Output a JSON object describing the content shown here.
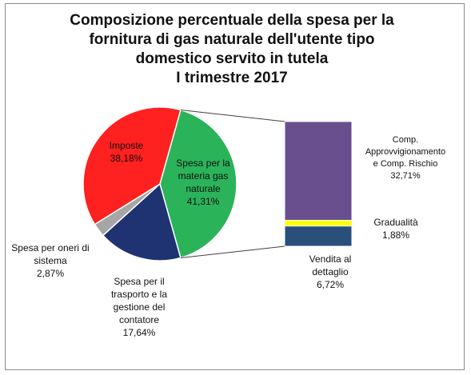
{
  "chart_data": {
    "type": "bar-of-pie",
    "title": [
      "Composizione percentuale della spesa per la",
      "fornitura di gas naturale dell'utente tipo",
      "domestico servito in tutela",
      "I trimestre 2017"
    ],
    "pie": {
      "slices": [
        {
          "name": "Spesa per la materia gas naturale",
          "label": [
            "Spesa per la",
            "materia gas",
            "naturale"
          ],
          "value": 41.31,
          "value_text": "41,31%",
          "color": "#2bb35a"
        },
        {
          "name": "Spesa per il trasporto e la gestione del contatore",
          "label": [
            "Spesa per il",
            "trasporto e la",
            "gestione del",
            "contatore"
          ],
          "value": 17.64,
          "value_text": "17,64%",
          "color": "#1f3272"
        },
        {
          "name": "Spesa per oneri di sistema",
          "label": [
            "Spesa per oneri di",
            "sistema"
          ],
          "value": 2.87,
          "value_text": "2,87%",
          "color": "#a6a6a6"
        },
        {
          "name": "Imposte",
          "label": [
            "Imposte"
          ],
          "value": 38.18,
          "value_text": "38,18%",
          "color": "#ff2020"
        }
      ]
    },
    "bar": {
      "breakdown_of": "Spesa per la materia gas naturale",
      "segments": [
        {
          "name": "Vendita al dettaglio",
          "label": [
            "Vendita al",
            "dettaglio"
          ],
          "value": 6.72,
          "value_text": "6,72%",
          "color": "#2a4f7a"
        },
        {
          "name": "Gradualità",
          "label": [
            "Gradualità"
          ],
          "value": 1.88,
          "value_text": "1,88%",
          "color": "#ffff00"
        },
        {
          "name": "Comp. Approvvigionamento e Comp. Rischio",
          "label": [
            "Comp.",
            "Approvvigionamento",
            "e  Comp. Rischio"
          ],
          "value": 32.71,
          "value_text": "32,71%",
          "color": "#6a4f8f"
        }
      ]
    }
  }
}
